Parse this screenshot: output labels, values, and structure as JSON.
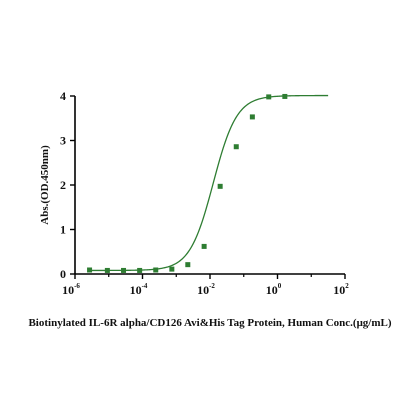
{
  "chart_data": {
    "type": "scatter",
    "xlabel": "Biotinylated IL-6R alpha/CD126 Avi&His Tag Protein, Human Conc.(μg/mL)",
    "ylabel": "Abs.(OD.450nm)",
    "xscale": "log",
    "xlim": [
      1e-06,
      100
    ],
    "ylim": [
      0,
      4
    ],
    "x_ticks": [
      {
        "base": "10",
        "exp": "-6",
        "value": 1e-06
      },
      {
        "base": "10",
        "exp": "-4",
        "value": 0.0001
      },
      {
        "base": "10",
        "exp": "-2",
        "value": 0.01
      },
      {
        "base": "10",
        "exp": "0",
        "value": 1
      },
      {
        "base": "10",
        "exp": "2",
        "value": 100
      }
    ],
    "y_ticks": [
      "0",
      "1",
      "2",
      "3",
      "4"
    ],
    "grid": false,
    "series": [
      {
        "color": "#2e7d32",
        "marker": "square",
        "points": [
          {
            "x": 2.7e-06,
            "y": 0.09
          },
          {
            "x": 9.1e-06,
            "y": 0.08
          },
          {
            "x": 2.74e-05,
            "y": 0.08
          },
          {
            "x": 8.23e-05,
            "y": 0.08
          },
          {
            "x": 0.000247,
            "y": 0.09
          },
          {
            "x": 0.00074,
            "y": 0.11
          },
          {
            "x": 0.0022,
            "y": 0.21
          },
          {
            "x": 0.0067,
            "y": 0.62
          },
          {
            "x": 0.02,
            "y": 1.97
          },
          {
            "x": 0.06,
            "y": 2.86
          },
          {
            "x": 0.18,
            "y": 3.53
          },
          {
            "x": 0.55,
            "y": 3.98
          },
          {
            "x": 1.65,
            "y": 3.99
          }
        ]
      }
    ],
    "fit": {
      "type": "4PL",
      "color": "#2e7d32",
      "bottom": 0.08,
      "top": 4.01,
      "ec50": 0.0125,
      "hill": 1.25
    }
  }
}
